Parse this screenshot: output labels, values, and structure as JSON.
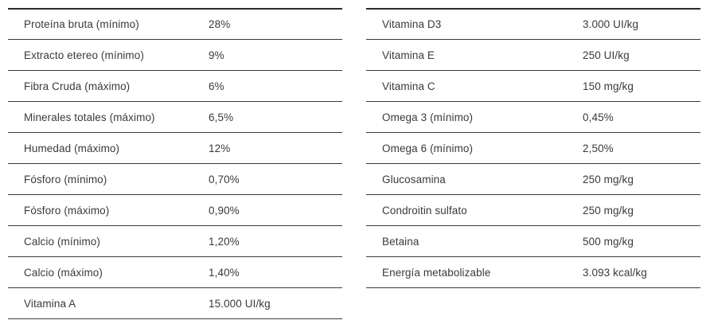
{
  "left_table": {
    "rows": [
      {
        "name": "Proteína bruta (mínimo)",
        "value": "28%"
      },
      {
        "name": "Extracto etereo (mínimo)",
        "value": "9%"
      },
      {
        "name": "Fibra Cruda (máximo)",
        "value": "6%"
      },
      {
        "name": "Minerales totales (máximo)",
        "value": "6,5%"
      },
      {
        "name": "Humedad (máximo)",
        "value": "12%"
      },
      {
        "name": "Fósforo (mínimo)",
        "value": "0,70%"
      },
      {
        "name": "Fósforo (máximo)",
        "value": "0,90%"
      },
      {
        "name": "Calcio (mínimo)",
        "value": "1,20%"
      },
      {
        "name": "Calcio (máximo)",
        "value": "1,40%"
      },
      {
        "name": "Vitamina A",
        "value": "15.000 UI/kg"
      }
    ]
  },
  "right_table": {
    "rows": [
      {
        "name": "Vitamina D3",
        "value": "3.000 UI/kg"
      },
      {
        "name": "Vitamina E",
        "value": "250 UI/kg"
      },
      {
        "name": "Vitamina C",
        "value": "150 mg/kg"
      },
      {
        "name": "Omega 3 (mínimo)",
        "value": "0,45%"
      },
      {
        "name": "Omega 6 (mínimo)",
        "value": "2,50%"
      },
      {
        "name": "Glucosamina",
        "value": "250 mg/kg"
      },
      {
        "name": "Condroitin sulfato",
        "value": "250 mg/kg"
      },
      {
        "name": "Betaina",
        "value": "500 mg/kg"
      },
      {
        "name": "Energía metabolizable",
        "value": "3.093 kcal/kg"
      }
    ]
  }
}
